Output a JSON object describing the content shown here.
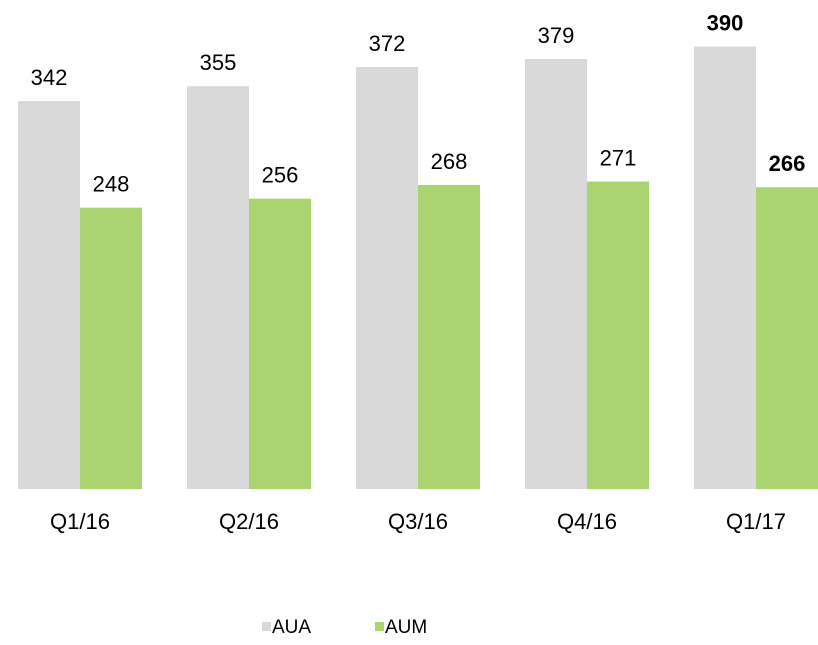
{
  "chart_data": {
    "type": "bar",
    "categories": [
      "Q1/16",
      "Q2/16",
      "Q3/16",
      "Q4/16",
      "Q1/17"
    ],
    "series": [
      {
        "name": "AUA",
        "color": "#d9d9d9",
        "values": [
          342,
          355,
          372,
          379,
          390
        ]
      },
      {
        "name": "AUM",
        "color": "#a9d46f",
        "values": [
          248,
          256,
          268,
          271,
          266
        ]
      }
    ],
    "legend": "bottom"
  }
}
